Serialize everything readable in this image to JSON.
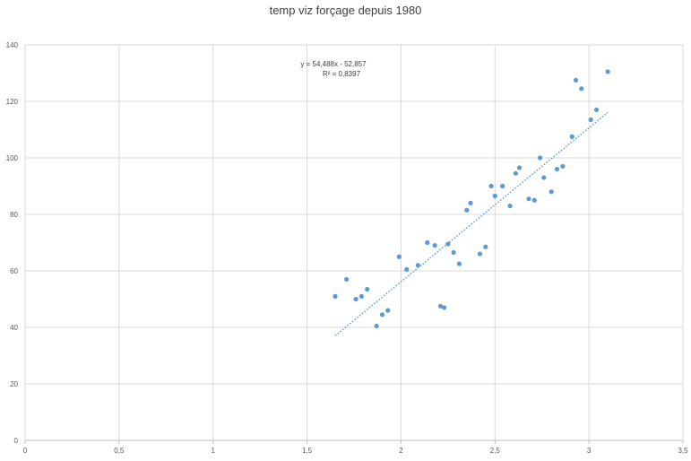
{
  "chart_data": {
    "type": "scatter",
    "title": "temp viz forçage depuis 1980",
    "xlabel": "",
    "ylabel": "",
    "xlim": [
      0,
      3.5
    ],
    "ylim": [
      0,
      140
    ],
    "x_ticks": [
      "0",
      "0,5",
      "1",
      "1,5",
      "2",
      "2,5",
      "3",
      "3,5"
    ],
    "y_ticks": [
      "0",
      "20",
      "40",
      "60",
      "80",
      "100",
      "120",
      "140"
    ],
    "grid": true,
    "marker_color": "#5b9bd5",
    "trendline": {
      "slope": 54.488,
      "intercept": -52.857,
      "x_range": [
        1.65,
        3.1
      ],
      "equation": "y = 54,488x - 52,857",
      "r2": "R² = 0,8397"
    },
    "points": [
      [
        1.65,
        51
      ],
      [
        1.71,
        57
      ],
      [
        1.76,
        50
      ],
      [
        1.79,
        51
      ],
      [
        1.82,
        53.5
      ],
      [
        1.87,
        40.5
      ],
      [
        1.9,
        44.5
      ],
      [
        1.93,
        46
      ],
      [
        1.99,
        65
      ],
      [
        2.03,
        60.5
      ],
      [
        2.09,
        62
      ],
      [
        2.14,
        70
      ],
      [
        2.18,
        69
      ],
      [
        2.21,
        47.5
      ],
      [
        2.23,
        47
      ],
      [
        2.25,
        69.5
      ],
      [
        2.28,
        66.5
      ],
      [
        2.31,
        62.5
      ],
      [
        2.35,
        81.5
      ],
      [
        2.37,
        84
      ],
      [
        2.42,
        66
      ],
      [
        2.45,
        68.5
      ],
      [
        2.48,
        90
      ],
      [
        2.5,
        86.5
      ],
      [
        2.54,
        90
      ],
      [
        2.58,
        83
      ],
      [
        2.61,
        94.5
      ],
      [
        2.63,
        96.5
      ],
      [
        2.68,
        85.5
      ],
      [
        2.71,
        85
      ],
      [
        2.74,
        100
      ],
      [
        2.76,
        93
      ],
      [
        2.8,
        88
      ],
      [
        2.83,
        96
      ],
      [
        2.86,
        97
      ],
      [
        2.91,
        107.5
      ],
      [
        2.93,
        127.5
      ],
      [
        2.96,
        124.5
      ],
      [
        3.01,
        113.5
      ],
      [
        3.04,
        117
      ],
      [
        3.1,
        130.5
      ]
    ]
  }
}
